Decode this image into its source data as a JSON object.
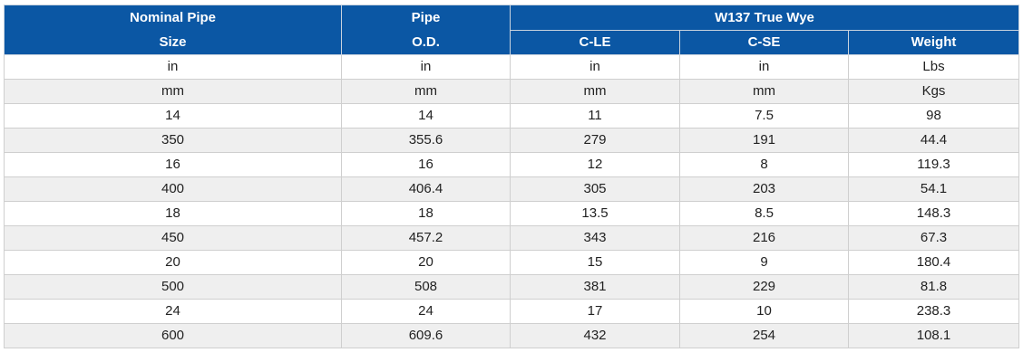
{
  "header": {
    "col1_line1": "Nominal Pipe",
    "col1_line2": "Size",
    "col2_line1": "Pipe",
    "col2_line2": "O.D.",
    "group": "W137 True Wye",
    "sub1": "C-LE",
    "sub2": "C-SE",
    "sub3": "Weight"
  },
  "rows": [
    [
      "in",
      "in",
      "in",
      "in",
      "Lbs"
    ],
    [
      "mm",
      "mm",
      "mm",
      "mm",
      "Kgs"
    ],
    [
      "14",
      "14",
      "11",
      "7.5",
      "98"
    ],
    [
      "350",
      "355.6",
      "279",
      "191",
      "44.4"
    ],
    [
      "16",
      "16",
      "12",
      "8",
      "119.3"
    ],
    [
      "400",
      "406.4",
      "305",
      "203",
      "54.1"
    ],
    [
      "18",
      "18",
      "13.5",
      "8.5",
      "148.3"
    ],
    [
      "450",
      "457.2",
      "343",
      "216",
      "67.3"
    ],
    [
      "20",
      "20",
      "15",
      "9",
      "180.4"
    ],
    [
      "500",
      "508",
      "381",
      "229",
      "81.8"
    ],
    [
      "24",
      "24",
      "17",
      "10",
      "238.3"
    ],
    [
      "600",
      "609.6",
      "432",
      "254",
      "108.1"
    ]
  ],
  "colors": {
    "header_bg": "#0b57a4",
    "header_text": "#ffffff",
    "stripe": "#efefef",
    "border": "#cfcfcf"
  }
}
